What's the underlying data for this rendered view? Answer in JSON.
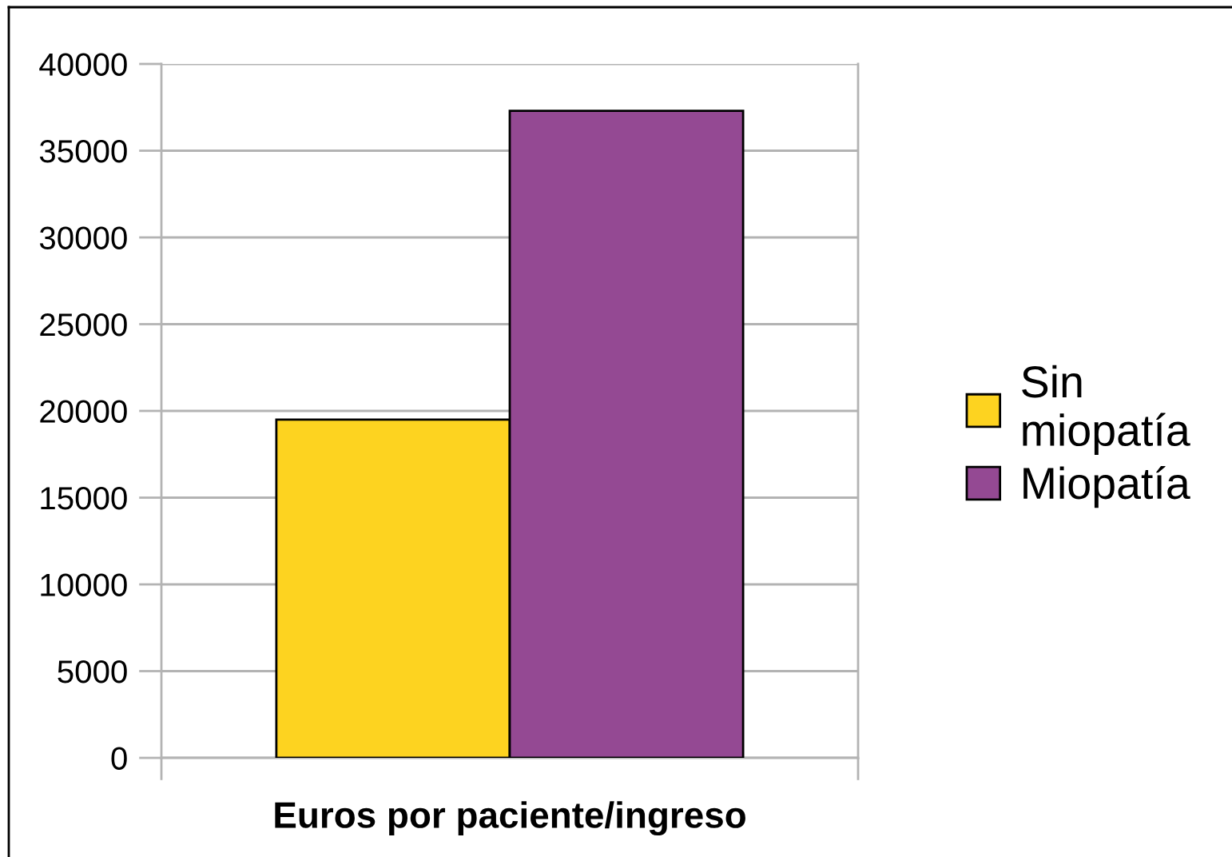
{
  "chart_data": {
    "type": "bar",
    "xlabel": "Euros por paciente/ingreso",
    "categories": [
      null
    ],
    "series": [
      {
        "name": "Sin miopatía",
        "color": "#fdd320",
        "values": [
          19500
        ]
      },
      {
        "name": "Miopatía",
        "color": "#944993",
        "values": [
          37300
        ]
      }
    ],
    "ylim": [
      0,
      40000
    ],
    "yticks": [
      0,
      5000,
      10000,
      15000,
      20000,
      25000,
      30000,
      35000,
      40000
    ],
    "grid": "y",
    "legend": "right"
  }
}
